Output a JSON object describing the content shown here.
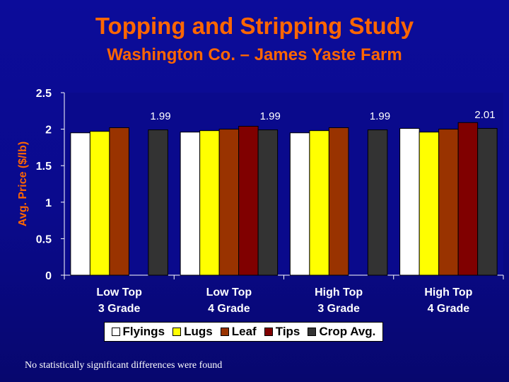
{
  "title": "Topping and Stripping Study",
  "subtitle": "Washington Co. – James Yaste Farm",
  "footnote": "No statistically significant differences were found",
  "colors": {
    "title": "#ff6600",
    "axis_text": "#ffffff",
    "axis_label": "#ff6600",
    "plot_bg": "#0a0a8c"
  },
  "chart_data": {
    "type": "bar",
    "title": "",
    "ylabel": "Avg. Price ($/lb)",
    "xlabel": "",
    "ylim": [
      0,
      2.5
    ],
    "yticks": [
      "0",
      "0.5",
      "1",
      "1.5",
      "2",
      "2.5"
    ],
    "ytick_values": [
      0,
      0.5,
      1,
      1.5,
      2,
      2.5
    ],
    "categories": [
      [
        "Low Top",
        "3 Grade"
      ],
      [
        "Low Top",
        "4 Grade"
      ],
      [
        "High Top",
        "3 Grade"
      ],
      [
        "High Top",
        "4 Grade"
      ]
    ],
    "series": [
      {
        "name": "Flyings",
        "color": "#ffffff",
        "values": [
          1.95,
          1.96,
          1.95,
          2.01
        ]
      },
      {
        "name": "Lugs",
        "color": "#ffff00",
        "values": [
          1.97,
          1.98,
          1.98,
          1.96
        ]
      },
      {
        "name": "Leaf",
        "color": "#993300",
        "values": [
          2.02,
          2.0,
          2.02,
          2.0
        ]
      },
      {
        "name": "Tips",
        "color": "#800000",
        "values": [
          null,
          2.04,
          null,
          2.09
        ]
      },
      {
        "name": "Crop Avg.",
        "color": "#333333",
        "values": [
          1.99,
          1.99,
          1.99,
          2.01
        ]
      }
    ],
    "data_labels": [
      "1.99",
      "1.99",
      "1.99",
      "2.01"
    ],
    "grid": false,
    "legend_position": "bottom"
  }
}
